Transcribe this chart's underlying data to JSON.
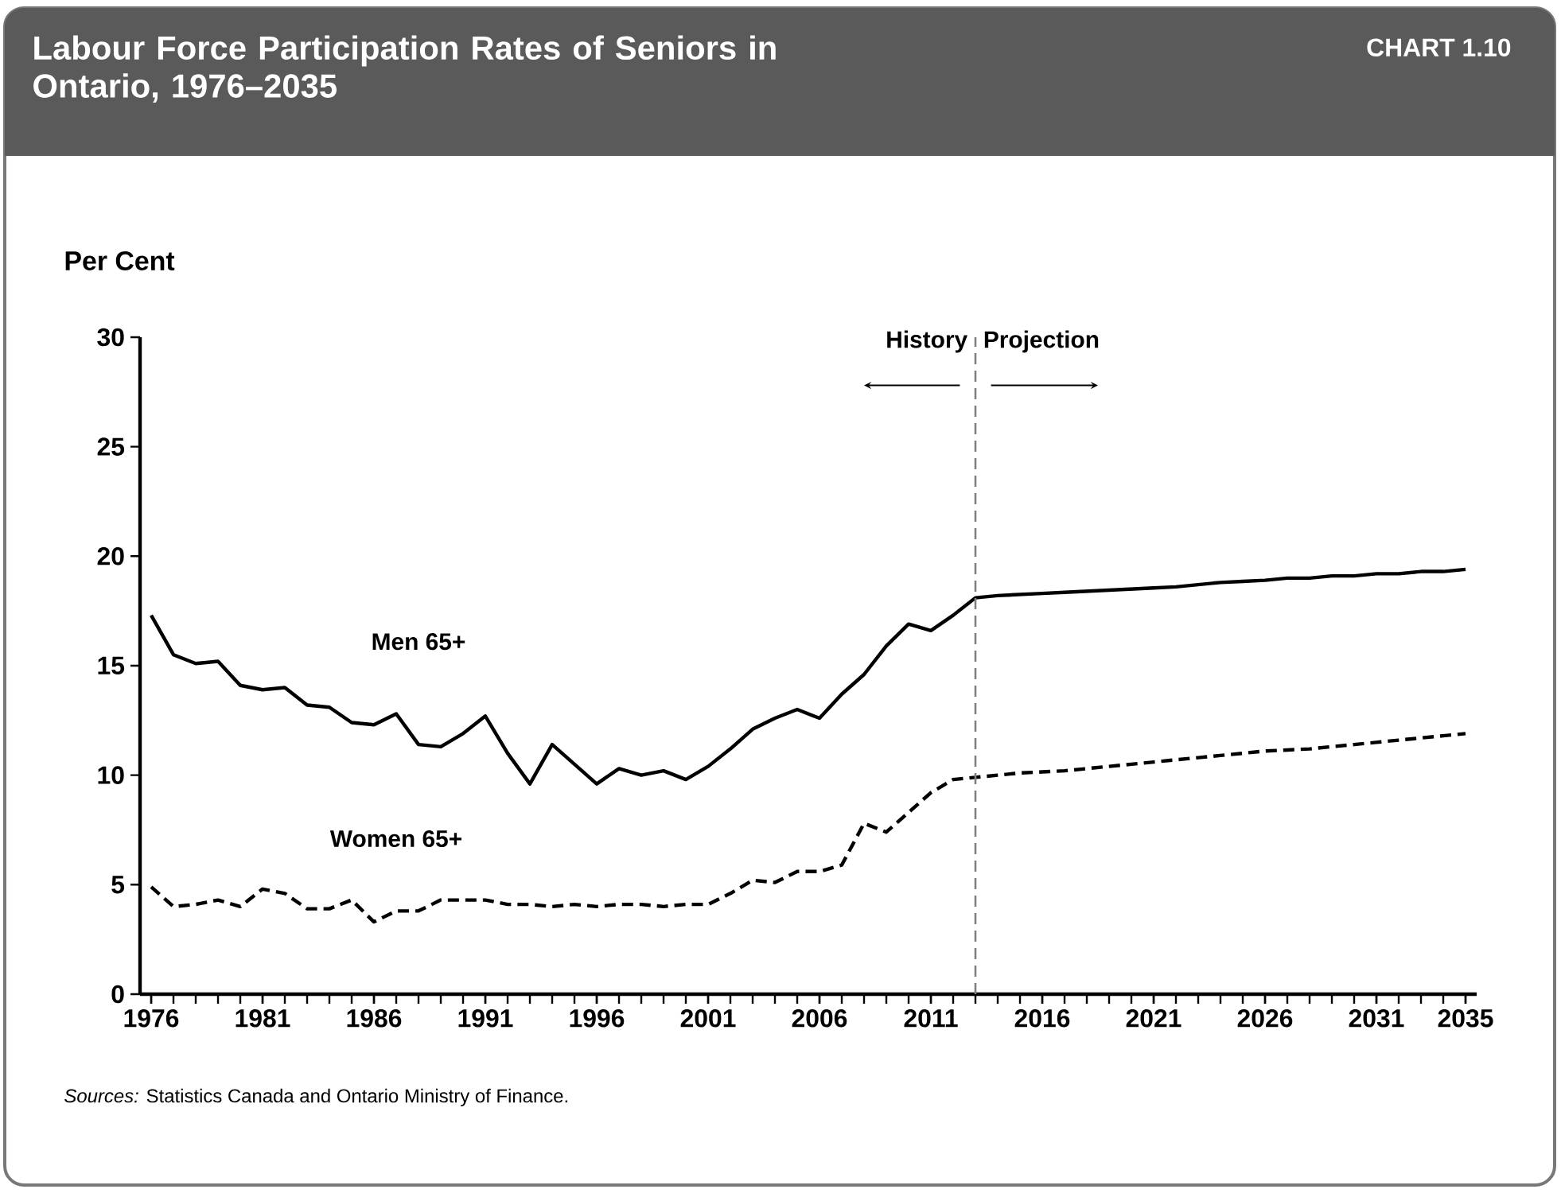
{
  "chart_data": {
    "type": "line",
    "title": "Labour Force Participation Rates of Seniors in Ontario, 1976–2035",
    "ylabel": "Per Cent",
    "annotations": [
      "CHART 1.10",
      "History",
      "Projection",
      "*Sources:* Statistics Canada and Ontario Ministry of Finance."
    ],
    "x": [
      1976,
      1977,
      1978,
      1979,
      1980,
      1981,
      1982,
      1983,
      1984,
      1985,
      1986,
      1987,
      1988,
      1989,
      1990,
      1991,
      1992,
      1993,
      1994,
      1995,
      1996,
      1997,
      1998,
      1999,
      2000,
      2001,
      2002,
      2003,
      2004,
      2005,
      2006,
      2007,
      2008,
      2009,
      2010,
      2011,
      2012,
      2013,
      2014,
      2015,
      2016,
      2017,
      2018,
      2019,
      2020,
      2021,
      2022,
      2023,
      2024,
      2025,
      2026,
      2027,
      2028,
      2029,
      2030,
      2031,
      2032,
      2033,
      2034,
      2035
    ],
    "series": [
      {
        "name": "Men 65+",
        "color": "#000000",
        "line_style": "solid",
        "values": [
          17.3,
          15.5,
          15.1,
          15.2,
          14.1,
          13.9,
          14.0,
          13.2,
          13.1,
          12.4,
          12.3,
          12.8,
          11.4,
          11.3,
          11.9,
          12.7,
          11.0,
          9.6,
          11.4,
          10.5,
          9.6,
          10.3,
          10.0,
          10.2,
          9.8,
          10.4,
          11.2,
          12.1,
          12.6,
          13.0,
          12.6,
          13.7,
          14.6,
          15.9,
          16.9,
          16.6,
          17.3,
          18.1,
          18.2,
          18.25,
          18.3,
          18.35,
          18.4,
          18.45,
          18.5,
          18.55,
          18.6,
          18.7,
          18.8,
          18.85,
          18.9,
          19.0,
          19.0,
          19.1,
          19.1,
          19.2,
          19.2,
          19.3,
          19.3,
          19.4
        ]
      },
      {
        "name": "Women 65+",
        "color": "#000000",
        "line_style": "dashed",
        "values": [
          4.9,
          4.0,
          4.1,
          4.3,
          4.0,
          4.8,
          4.6,
          3.9,
          3.9,
          4.3,
          3.3,
          3.8,
          3.8,
          4.3,
          4.3,
          4.3,
          4.1,
          4.1,
          4.0,
          4.1,
          4.0,
          4.1,
          4.1,
          4.0,
          4.1,
          4.1,
          4.6,
          5.2,
          5.1,
          5.6,
          5.6,
          5.9,
          7.8,
          7.4,
          8.3,
          9.2,
          9.8,
          9.9,
          10.0,
          10.1,
          10.15,
          10.2,
          10.3,
          10.4,
          10.5,
          10.6,
          10.7,
          10.8,
          10.9,
          11.0,
          11.1,
          11.15,
          11.2,
          11.3,
          11.4,
          11.5,
          11.6,
          11.7,
          11.8,
          11.9
        ]
      }
    ],
    "xlim": [
      1975.5,
      2035.5
    ],
    "ylim": [
      0,
      30
    ],
    "xticks": [
      1976,
      1981,
      1986,
      1991,
      1996,
      2001,
      2006,
      2011,
      2016,
      2021,
      2026,
      2031,
      2035
    ],
    "yticks": [
      0,
      5,
      10,
      15,
      20,
      25,
      30
    ],
    "ref_lines": [
      {
        "axis": "x",
        "value": 2013,
        "color": "#808080",
        "line_style": "dashed"
      }
    ],
    "grid": false,
    "legend": false,
    "marker": "none"
  }
}
